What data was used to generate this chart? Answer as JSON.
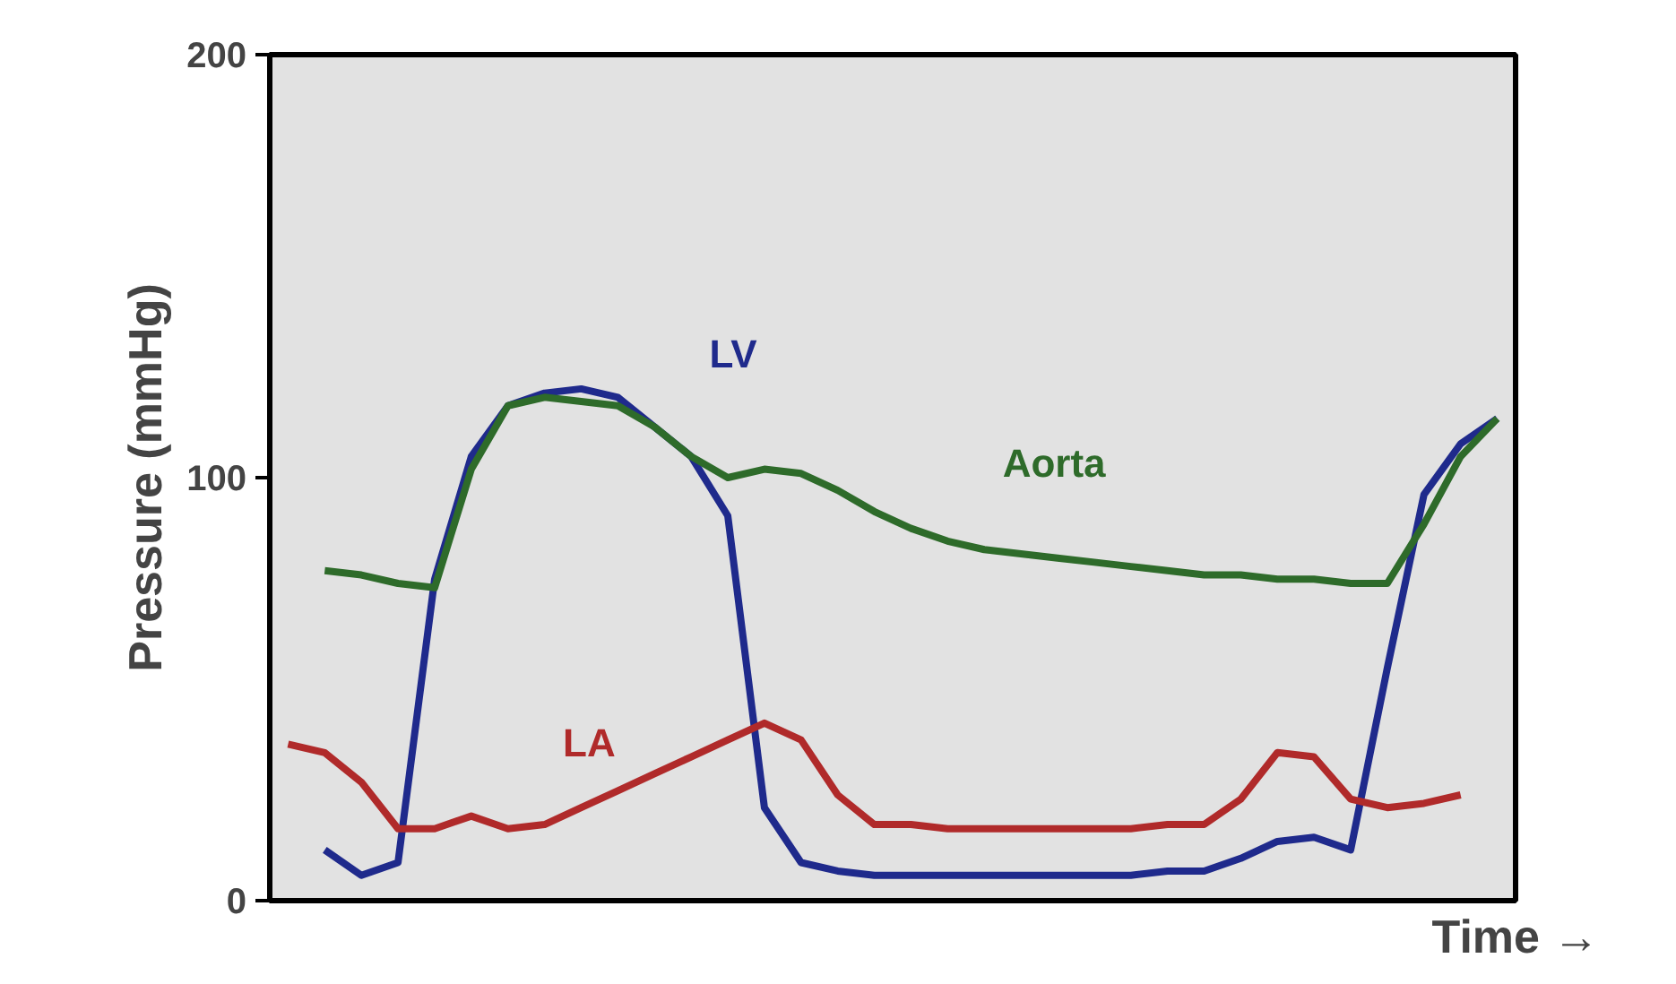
{
  "chart_data": {
    "type": "line",
    "xlabel": "Time →",
    "ylabel": "Pressure (mmHg)",
    "ylim": [
      0,
      200
    ],
    "yticks": [
      0,
      100,
      200
    ],
    "tick_labels": "y",
    "grid": false,
    "marker": "none",
    "line_style": "solid",
    "categories": [
      null,
      null,
      null,
      null,
      null,
      null,
      null,
      null,
      null,
      null,
      null,
      null,
      null,
      null,
      null,
      null,
      null,
      null,
      null,
      null,
      null,
      null,
      null,
      null,
      null,
      null,
      null,
      null,
      null,
      null,
      null,
      null,
      null,
      null
    ],
    "series": [
      {
        "name": "LV",
        "color": "#1f2a8c",
        "values": [
          null,
          12,
          6,
          9,
          76,
          105,
          117,
          120,
          121,
          119,
          112,
          105,
          91,
          22,
          9,
          7,
          6,
          6,
          6,
          6,
          6,
          6,
          6,
          6,
          7,
          7,
          10,
          14,
          15,
          12,
          55,
          96,
          108,
          114
        ]
      },
      {
        "name": "Aorta",
        "color": "#2e6b2a",
        "values": [
          null,
          78,
          77,
          75,
          74,
          102,
          117,
          119,
          118,
          117,
          112,
          105,
          100,
          102,
          101,
          97,
          92,
          88,
          85,
          83,
          82,
          81,
          80,
          79,
          78,
          77,
          77,
          76,
          76,
          75,
          75,
          89,
          105,
          114
        ]
      },
      {
        "name": "LA",
        "color": "#b02a2a",
        "values": [
          37,
          35,
          28,
          17,
          17,
          20,
          17,
          18,
          22,
          26,
          30,
          34,
          38,
          42,
          38,
          25,
          18,
          18,
          17,
          17,
          17,
          17,
          17,
          17,
          18,
          18,
          24,
          35,
          34,
          24,
          22,
          23,
          25,
          null
        ]
      }
    ]
  }
}
